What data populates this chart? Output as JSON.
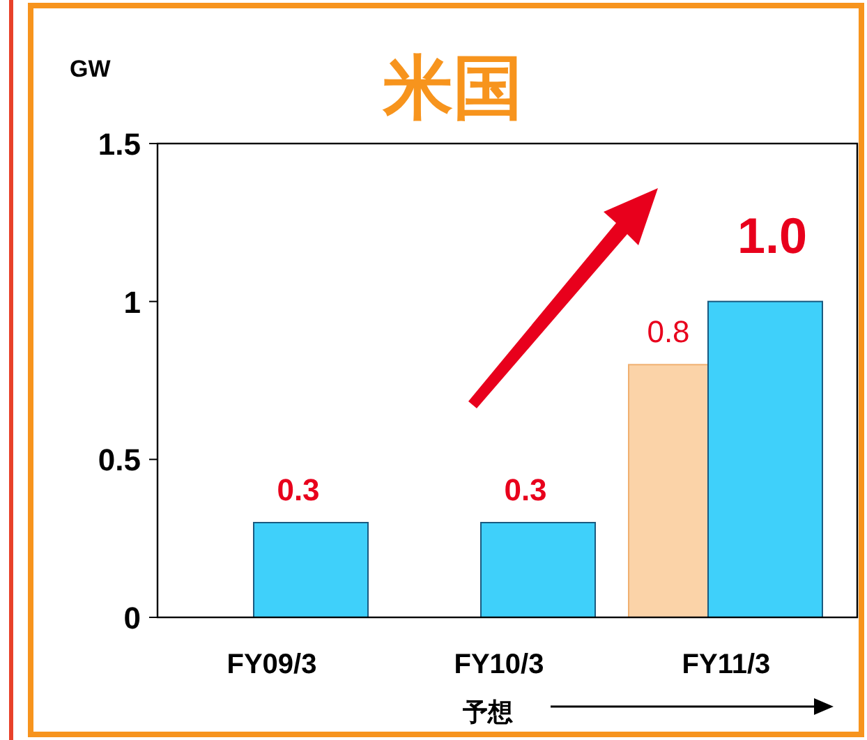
{
  "chart_data": {
    "type": "bar",
    "title": "米国",
    "ylabel": "GW",
    "annotations": [
      "予想"
    ],
    "categories": [
      "FY09/3",
      "FY10/3",
      "FY11/3"
    ],
    "series": [
      {
        "color": "#fbd3a8",
        "values": [
          null,
          null,
          0.8
        ],
        "value_labels": [
          null,
          null,
          "0.8"
        ]
      },
      {
        "color": "#3fd0fa",
        "values": [
          0.3,
          0.3,
          1.0
        ],
        "value_labels": [
          "0.3",
          "0.3",
          "1.0"
        ]
      }
    ],
    "ylim": [
      0,
      1.5
    ],
    "yticks": [
      0,
      0.5,
      1,
      1.5
    ],
    "grid": false
  }
}
